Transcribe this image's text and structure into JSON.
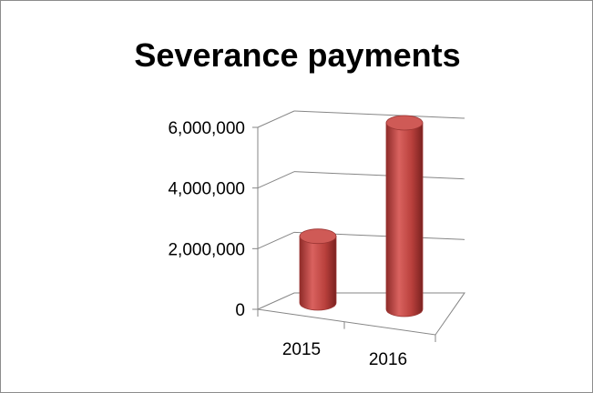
{
  "chart_data": {
    "type": "bar",
    "style": "3d-cylinder",
    "title": "Severance payments",
    "categories": [
      "2015",
      "2016"
    ],
    "values": [
      2200000,
      6150000
    ],
    "yticks": [
      "0",
      "2,000,000",
      "4,000,000",
      "6,000,000"
    ],
    "ytick_values": [
      0,
      2000000,
      4000000,
      6000000
    ],
    "ylim": [
      0,
      6000000
    ],
    "grid": true,
    "legend": "none",
    "bar_color": "#c0504d"
  }
}
